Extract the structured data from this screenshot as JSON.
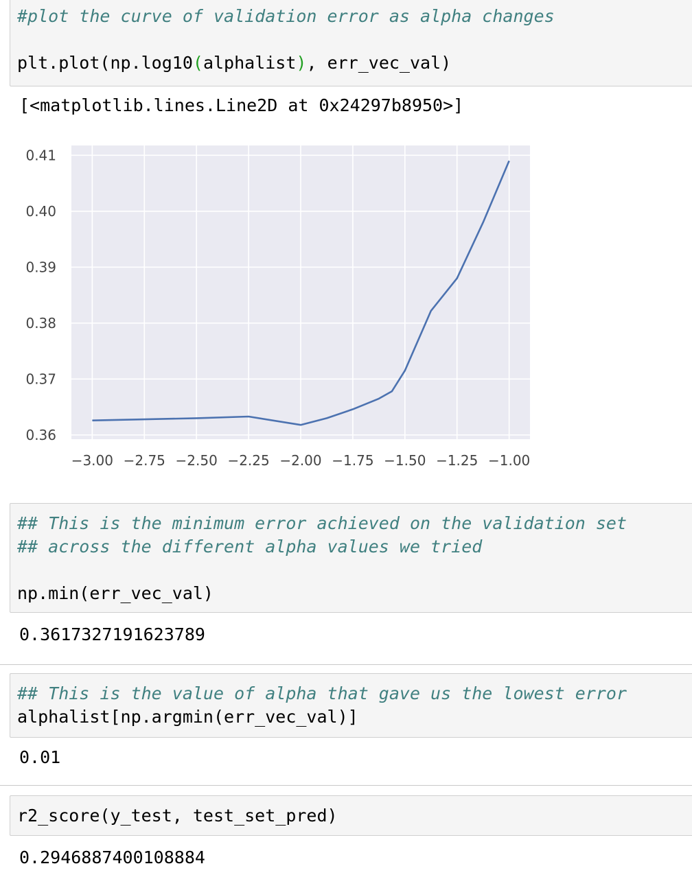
{
  "cells": {
    "plot_cell": {
      "comment": "#plot the curve of validation error as alpha changes",
      "code_prefix": "plt.plot(np.log10",
      "code_paren_open": "(",
      "code_arg": "alphalist",
      "code_paren_close": ")",
      "code_suffix": ", err_vec_val)",
      "output": "[<matplotlib.lines.Line2D at 0x24297b8950>]"
    },
    "min_cell": {
      "comment1": "## This is the minimum error achieved on the validation set",
      "comment2": "## across the different alpha values we tried",
      "code": "np.min(err_vec_val)",
      "output": "0.3617327191623789"
    },
    "argmin_cell": {
      "comment": "## This is the value of alpha that gave us the lowest error",
      "code": "alphalist[np.argmin(err_vec_val)]",
      "output": "0.01"
    },
    "r2_cell": {
      "code": "r2_score(y_test, test_set_pred)",
      "output": "0.2946887400108884"
    }
  },
  "chart_data": {
    "type": "line",
    "title": "",
    "xlabel": "",
    "ylabel": "",
    "xlim": [
      -3.0,
      -1.0
    ],
    "ylim": [
      0.36,
      0.41
    ],
    "x_ticks": [
      "−3.00",
      "−2.75",
      "−2.50",
      "−2.25",
      "−2.00",
      "−1.75",
      "−1.50",
      "−1.25",
      "−1.00"
    ],
    "x_tick_values": [
      -3.0,
      -2.75,
      -2.5,
      -2.25,
      -2.0,
      -1.75,
      -1.5,
      -1.25,
      -1.0
    ],
    "y_ticks": [
      "0.36",
      "0.37",
      "0.38",
      "0.39",
      "0.40",
      "0.41"
    ],
    "y_tick_values": [
      0.36,
      0.37,
      0.38,
      0.39,
      0.4,
      0.41
    ],
    "grid": true,
    "background": "#eaeaf2",
    "line_color": "#4c72b0",
    "series": [
      {
        "x": [
          -3.0,
          -2.75,
          -2.5,
          -2.25,
          -2.0,
          -1.875,
          -1.75,
          -1.625,
          -1.5625,
          -1.5,
          -1.375,
          -1.25,
          -1.125,
          -1.0
        ],
        "values": [
          0.3626,
          0.3628,
          0.363,
          0.3633,
          0.3618,
          0.363,
          0.3646,
          0.3665,
          0.3678,
          0.3715,
          0.3822,
          0.388,
          0.398,
          0.409
        ]
      }
    ]
  }
}
